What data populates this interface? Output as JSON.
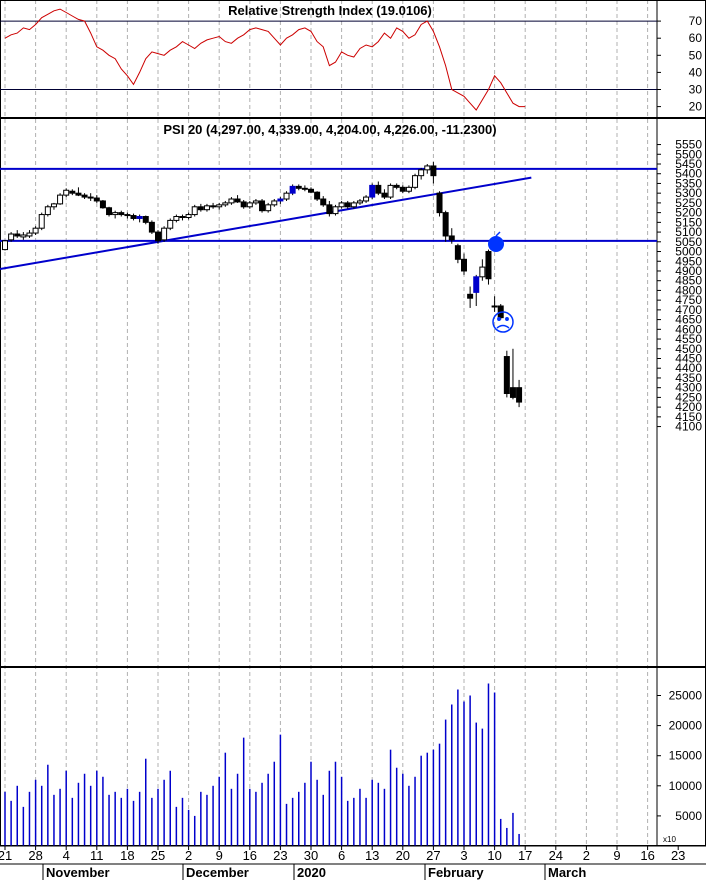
{
  "chart_data": [
    {
      "type": "line",
      "panel": "rsi",
      "title": "Relative Strength Index (19.0106)",
      "y_ticks": [
        70,
        60,
        50,
        40,
        30,
        20
      ],
      "ylim": [
        10,
        82
      ],
      "reference_lines": [
        70,
        30
      ],
      "series": [
        {
          "color": "#cc0000",
          "values": [
            60,
            62,
            63,
            66,
            65,
            68,
            72,
            74,
            76,
            77,
            75,
            73,
            71,
            70,
            63,
            55,
            53,
            50,
            48,
            42,
            38,
            33,
            40,
            48,
            52,
            51,
            50,
            53,
            55,
            58,
            56,
            54,
            57,
            59,
            60,
            61,
            58,
            57,
            60,
            62,
            65,
            66,
            65,
            64,
            60,
            56,
            60,
            62,
            65,
            66,
            64,
            58,
            55,
            44,
            46,
            52,
            50,
            49,
            54,
            56,
            55,
            58,
            63,
            60,
            66,
            64,
            60,
            62,
            68,
            70,
            64,
            55,
            44,
            30,
            28,
            26,
            22,
            18,
            24,
            30,
            38,
            34,
            28,
            22,
            20,
            20
          ]
        }
      ]
    },
    {
      "type": "candlestick",
      "panel": "price",
      "title": "PSI 20 (4,297.00, 4,339.00, 4,204.00, 4,226.00, -11.2300)",
      "y_ticks": [
        5550,
        5500,
        5450,
        5400,
        5350,
        5300,
        5250,
        5200,
        5150,
        5100,
        5050,
        5000,
        4950,
        4900,
        4850,
        4800,
        4750,
        4700,
        4650,
        4600,
        4550,
        4500,
        4450,
        4400,
        4350,
        4300,
        4250,
        4200,
        4150,
        4100
      ],
      "ylim": [
        4080,
        5580
      ],
      "horizontal_lines": [
        5425,
        5055
      ],
      "trendline": {
        "x": [
          0,
          86
        ],
        "y": [
          4910,
          5380
        ]
      },
      "ohlc": [
        [
          5010,
          5060,
          5005,
          5055
        ],
        [
          5060,
          5100,
          5050,
          5090
        ],
        [
          5090,
          5110,
          5070,
          5080
        ],
        [
          5075,
          5100,
          5060,
          5085
        ],
        [
          5080,
          5110,
          5070,
          5095
        ],
        [
          5095,
          5130,
          5085,
          5120
        ],
        [
          5120,
          5200,
          5110,
          5190
        ],
        [
          5190,
          5240,
          5180,
          5230
        ],
        [
          5230,
          5250,
          5215,
          5245
        ],
        [
          5245,
          5300,
          5240,
          5290
        ],
        [
          5290,
          5325,
          5280,
          5315
        ],
        [
          5310,
          5320,
          5290,
          5300
        ],
        [
          5300,
          5330,
          5285,
          5290
        ],
        [
          5290,
          5300,
          5270,
          5280
        ],
        [
          5280,
          5300,
          5260,
          5275
        ],
        [
          5275,
          5290,
          5250,
          5260
        ],
        [
          5260,
          5265,
          5220,
          5225
        ],
        [
          5225,
          5230,
          5180,
          5190
        ],
        [
          5190,
          5210,
          5170,
          5200
        ],
        [
          5200,
          5210,
          5180,
          5190
        ],
        [
          5190,
          5200,
          5170,
          5185
        ],
        [
          5185,
          5195,
          5160,
          5170
        ],
        [
          5170,
          5190,
          5150,
          5180
        ],
        [
          5180,
          5185,
          5140,
          5150
        ],
        [
          5150,
          5160,
          5090,
          5100
        ],
        [
          5100,
          5110,
          5040,
          5055
        ],
        [
          5060,
          5130,
          5050,
          5120
        ],
        [
          5120,
          5170,
          5110,
          5160
        ],
        [
          5160,
          5190,
          5150,
          5180
        ],
        [
          5180,
          5190,
          5160,
          5175
        ],
        [
          5175,
          5200,
          5165,
          5190
        ],
        [
          5190,
          5240,
          5180,
          5230
        ],
        [
          5230,
          5245,
          5205,
          5215
        ],
        [
          5215,
          5245,
          5205,
          5235
        ],
        [
          5235,
          5250,
          5220,
          5230
        ],
        [
          5230,
          5250,
          5215,
          5240
        ],
        [
          5240,
          5260,
          5230,
          5250
        ],
        [
          5250,
          5280,
          5240,
          5270
        ],
        [
          5270,
          5290,
          5250,
          5255
        ],
        [
          5255,
          5265,
          5220,
          5230
        ],
        [
          5230,
          5260,
          5220,
          5250
        ],
        [
          5250,
          5270,
          5240,
          5260
        ],
        [
          5260,
          5270,
          5200,
          5210
        ],
        [
          5210,
          5250,
          5200,
          5240
        ],
        [
          5240,
          5270,
          5230,
          5260
        ],
        [
          5260,
          5280,
          5245,
          5270
        ],
        [
          5270,
          5310,
          5260,
          5300
        ],
        [
          5300,
          5345,
          5290,
          5335
        ],
        [
          5335,
          5345,
          5315,
          5325
        ],
        [
          5325,
          5340,
          5310,
          5320
        ],
        [
          5320,
          5330,
          5300,
          5305
        ],
        [
          5305,
          5310,
          5260,
          5270
        ],
        [
          5270,
          5285,
          5230,
          5240
        ],
        [
          5240,
          5260,
          5180,
          5195
        ],
        [
          5195,
          5240,
          5185,
          5230
        ],
        [
          5230,
          5260,
          5220,
          5250
        ],
        [
          5250,
          5260,
          5220,
          5230
        ],
        [
          5230,
          5260,
          5220,
          5250
        ],
        [
          5250,
          5270,
          5240,
          5260
        ],
        [
          5260,
          5290,
          5250,
          5280
        ],
        [
          5280,
          5350,
          5270,
          5340
        ],
        [
          5340,
          5360,
          5290,
          5300
        ],
        [
          5300,
          5320,
          5270,
          5280
        ],
        [
          5280,
          5350,
          5270,
          5340
        ],
        [
          5340,
          5350,
          5320,
          5330
        ],
        [
          5330,
          5340,
          5300,
          5310
        ],
        [
          5310,
          5340,
          5300,
          5330
        ],
        [
          5330,
          5400,
          5320,
          5390
        ],
        [
          5390,
          5430,
          5370,
          5420
        ],
        [
          5420,
          5450,
          5400,
          5440
        ],
        [
          5440,
          5460,
          5350,
          5390
        ],
        [
          5300,
          5310,
          5180,
          5200
        ],
        [
          5200,
          5210,
          5050,
          5080
        ],
        [
          5080,
          5120,
          5040,
          5060
        ],
        [
          5030,
          5040,
          4940,
          4960
        ],
        [
          4960,
          4990,
          4880,
          4900
        ],
        [
          4780,
          4820,
          4710,
          4760
        ],
        [
          4790,
          4880,
          4720,
          4870
        ],
        [
          4870,
          4960,
          4850,
          4920
        ],
        [
          5000,
          5010,
          4830,
          4860
        ],
        [
          4720,
          4770,
          4690,
          4720
        ],
        [
          4720,
          4730,
          4650,
          4660
        ],
        [
          4460,
          4490,
          4250,
          4270
        ],
        [
          4300,
          4500,
          4240,
          4250
        ],
        [
          4300,
          4340,
          4200,
          4226
        ]
      ]
    },
    {
      "type": "bar",
      "panel": "volume",
      "y_ticks": [
        25000,
        20000,
        15000,
        10000,
        5000
      ],
      "ylim": [
        0,
        28000
      ],
      "axis_multiplier": "x10",
      "x_tick_labels": [
        "21",
        "28",
        "4",
        "11",
        "18",
        "25",
        "2",
        "9",
        "16",
        "23",
        "30",
        "6",
        "13",
        "20",
        "27",
        "3",
        "10",
        "17",
        "24",
        "2",
        "9",
        "16",
        "23"
      ],
      "months": [
        "November",
        "December",
        "2020",
        "February",
        "March"
      ],
      "values": [
        9000,
        7500,
        10000,
        6500,
        9000,
        11000,
        10000,
        13500,
        8500,
        9500,
        12500,
        8000,
        10500,
        12000,
        10000,
        12500,
        11500,
        8500,
        9000,
        8000,
        9500,
        7500,
        9000,
        14500,
        8000,
        9500,
        11000,
        12500,
        6500,
        8000,
        6000,
        5000,
        9000,
        8500,
        10000,
        11500,
        15500,
        9500,
        12000,
        18000,
        9500,
        9000,
        10500,
        12000,
        14000,
        18500,
        7000,
        8000,
        9000,
        10500,
        14000,
        11000,
        8500,
        12500,
        14000,
        11500,
        7500,
        8000,
        9500,
        8000,
        11000,
        10500,
        9500,
        16000,
        13000,
        12000,
        10000,
        11500,
        15000,
        15500,
        16000,
        17000,
        21000,
        23500,
        26000,
        24000,
        25000,
        20500,
        19500,
        27000,
        25500
      ],
      "extra_values": [
        4500,
        3000,
        5500,
        2000
      ]
    }
  ]
}
